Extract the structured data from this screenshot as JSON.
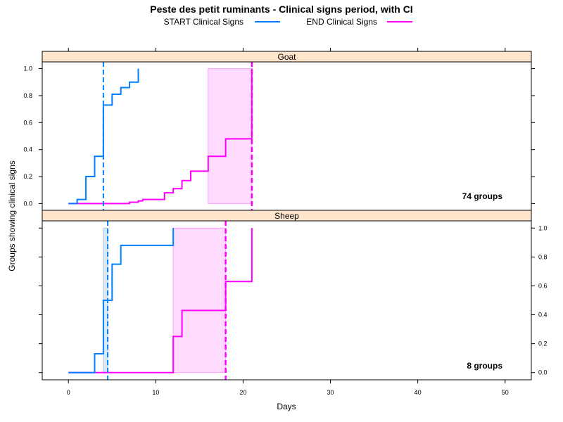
{
  "chart_data": {
    "type": "line",
    "title": "Peste des petit ruminants - Clinical signs period, with CI",
    "xlabel": "Days",
    "ylabel": "Groups showing clinical signs",
    "xlim": [
      -3,
      53
    ],
    "ylim": [
      -0.05,
      1.05
    ],
    "x_ticks": [
      0,
      10,
      20,
      30,
      40,
      50
    ],
    "y_ticks": [
      0.0,
      0.2,
      0.4,
      0.6,
      0.8,
      1.0
    ],
    "x_tick_labels": [
      "0",
      "10",
      "20",
      "30",
      "40",
      "50"
    ],
    "y_tick_labels": [
      "0.0",
      "0.2",
      "0.4",
      "0.6",
      "0.8",
      "1.0"
    ],
    "legend_position": "top",
    "series": [
      {
        "name": "START Clinical Signs",
        "color": "#0080ff"
      },
      {
        "name": "END Clinical Signs",
        "color": "#ff00ff"
      }
    ],
    "panels": [
      {
        "strip": "Goat",
        "annotation": "74 groups",
        "start_steps": [
          [
            0,
            0.0
          ],
          [
            1,
            0.03
          ],
          [
            2,
            0.2
          ],
          [
            3,
            0.35
          ],
          [
            4,
            0.73
          ],
          [
            5,
            0.81
          ],
          [
            6,
            0.86
          ],
          [
            7,
            0.9
          ],
          [
            8,
            1.0
          ]
        ],
        "start_median": 4,
        "start_ci": null,
        "end_steps": [
          [
            0,
            0.0
          ],
          [
            7,
            0.01
          ],
          [
            8,
            0.02
          ],
          [
            8.5,
            0.03
          ],
          [
            11,
            0.08
          ],
          [
            12,
            0.11
          ],
          [
            13,
            0.17
          ],
          [
            14,
            0.24
          ],
          [
            16,
            0.35
          ],
          [
            18,
            0.48
          ],
          [
            21,
            1.0
          ]
        ],
        "end_median": 21,
        "end_ci": [
          16,
          21
        ]
      },
      {
        "strip": "Sheep",
        "annotation": "8 groups",
        "start_steps": [
          [
            0,
            0.0
          ],
          [
            3,
            0.13
          ],
          [
            4,
            0.5
          ],
          [
            5,
            0.75
          ],
          [
            6,
            0.88
          ],
          [
            12,
            1.0
          ]
        ],
        "start_median": 4.5,
        "start_ci": [
          4,
          4.5
        ],
        "end_steps": [
          [
            0,
            0.0
          ],
          [
            12,
            0.25
          ],
          [
            13,
            0.43
          ],
          [
            18,
            0.63
          ],
          [
            21,
            1.0
          ]
        ],
        "end_median": 18,
        "end_ci": [
          12,
          18
        ]
      }
    ]
  }
}
